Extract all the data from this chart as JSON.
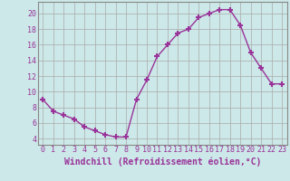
{
  "x": [
    0,
    1,
    2,
    3,
    4,
    5,
    6,
    7,
    8,
    9,
    10,
    11,
    12,
    13,
    14,
    15,
    16,
    17,
    18,
    19,
    20,
    21,
    22,
    23
  ],
  "y": [
    9,
    7.5,
    7,
    6.5,
    5.5,
    5,
    4.5,
    4.2,
    4.2,
    9,
    11.5,
    14.5,
    16,
    17.5,
    18,
    19.5,
    20,
    20.5,
    20.5,
    18.5,
    15,
    13,
    11,
    11
  ],
  "line_color": "#993399",
  "marker": "+",
  "markersize": 5,
  "markeredgewidth": 1.5,
  "linewidth": 1.0,
  "xlabel": "Windchill (Refroidissement éolien,°C)",
  "xlabel_fontsize": 7,
  "ylabel_ticks": [
    4,
    6,
    8,
    10,
    12,
    14,
    16,
    18,
    20
  ],
  "ylim": [
    3.2,
    21.5
  ],
  "xlim": [
    -0.5,
    23.5
  ],
  "bg_color": "#cce8e8",
  "grid_color": "#aaaaaa",
  "tick_color": "#993399",
  "tick_fontsize": 6,
  "xtick_labels": [
    "0",
    "1",
    "2",
    "3",
    "4",
    "5",
    "6",
    "7",
    "8",
    "9",
    "10",
    "11",
    "12",
    "13",
    "14",
    "15",
    "16",
    "17",
    "18",
    "19",
    "20",
    "21",
    "22",
    "23"
  ]
}
